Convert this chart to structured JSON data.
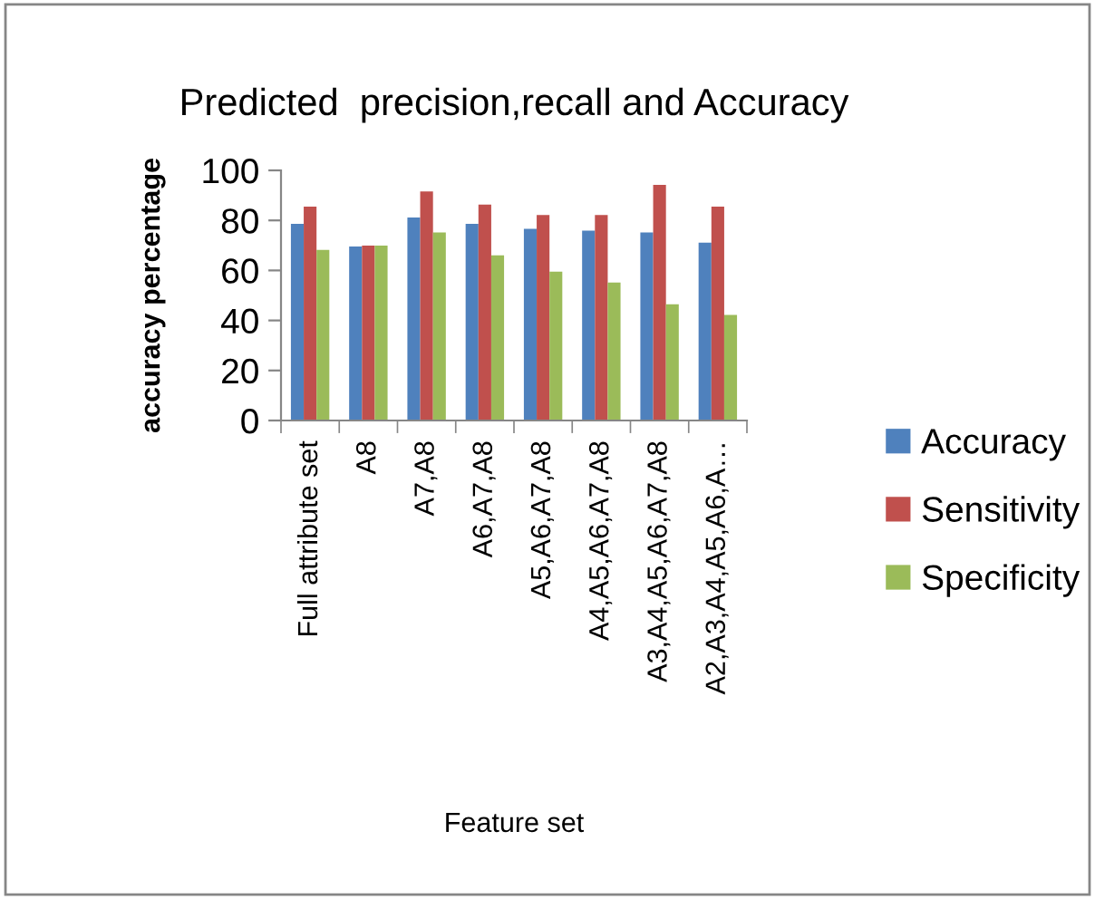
{
  "chart_data": {
    "type": "bar",
    "title": "Predicted  precision,recall and Accuracy",
    "xlabel": "Feature set",
    "ylabel": "accuracy percentage",
    "categories": [
      "Full attribute set",
      "A8",
      "A7,A8",
      "A6,A7,A8",
      "A5,A6,A7,A8",
      "A4,A5,A6,A7,A8",
      "A3,A4,A5,A6,A7,A8",
      "A2,A3,A4,A5,A6,A…"
    ],
    "series": [
      {
        "name": "Accuracy",
        "color": "#4f81bd",
        "values": [
          78.6,
          69.6,
          81.2,
          78.6,
          76.6,
          75.9,
          75.2,
          71.1
        ]
      },
      {
        "name": "Sensitivity",
        "color": "#c0504d",
        "values": [
          85.5,
          69.9,
          91.6,
          86.3,
          82.2,
          82.2,
          94.2,
          85.5
        ]
      },
      {
        "name": "Specificity",
        "color": "#9bbb59",
        "values": [
          68.2,
          69.9,
          75.2,
          66.0,
          59.5,
          55.2,
          46.5,
          42.2
        ]
      }
    ],
    "ylim": [
      0,
      100
    ],
    "yticks": [
      0,
      20,
      40,
      60,
      80,
      100
    ],
    "grid": false,
    "legend": "right"
  }
}
